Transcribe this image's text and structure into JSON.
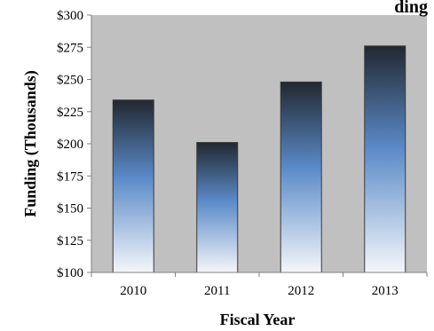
{
  "chart_data": {
    "type": "bar",
    "title": "Funding",
    "title_visible_text": "ding",
    "xlabel": "Fiscal Year",
    "ylabel": "Funding (Thousands)",
    "categories": [
      "2010",
      "2011",
      "2012",
      "2013"
    ],
    "values": [
      234,
      201,
      248,
      276
    ],
    "ylim": [
      100,
      300
    ],
    "yticks": [
      100,
      125,
      150,
      175,
      200,
      225,
      250,
      275,
      300
    ],
    "ytick_labels": [
      "$100",
      "$125",
      "$150",
      "$175",
      "$200",
      "$225",
      "$250",
      "$275",
      "$300"
    ],
    "grid": false,
    "legend": "none"
  },
  "colors": {
    "plot_background": "#c0c0c0",
    "bar_top": "#222830",
    "bar_mid": "#5a8ac8",
    "bar_bottom": "#f4f6fa",
    "bar_outline": "#3a3a3a",
    "axis": "#808080"
  }
}
